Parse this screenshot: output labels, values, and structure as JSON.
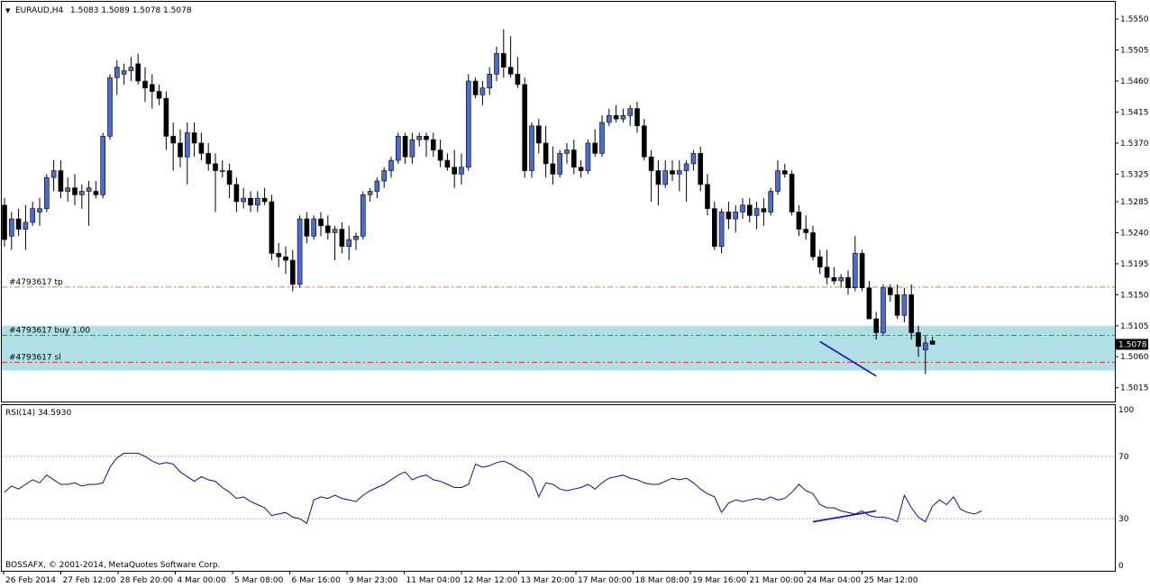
{
  "header": {
    "symbol": "EURAUD,H4",
    "ohlc": "1.5083 1.5089 1.5078 1.5078"
  },
  "footer": {
    "copyright": "BOSSAFX, © 2001-2014, MetaQuotes Software Corp."
  },
  "chart_data": [
    {
      "type": "candlestick",
      "title": "EURAUD,H4",
      "ylim": [
        1.4995,
        1.5575
      ],
      "y_ticks": [
        "1.5550",
        "1.5505",
        "1.5460",
        "1.5415",
        "1.5370",
        "1.5325",
        "1.5285",
        "1.5240",
        "1.5195",
        "1.5150",
        "1.5105",
        "1.5060",
        "1.5015"
      ],
      "x_labels": [
        "26 Feb 2014",
        "27 Feb 12:00",
        "28 Feb 20:00",
        "4 Mar 00:00",
        "5 Mar 08:00",
        "6 Mar 16:00",
        "9 Mar 23:00",
        "11 Mar 04:00",
        "12 Mar 12:00",
        "13 Mar 20:00",
        "17 Mar 00:00",
        "18 Mar 08:00",
        "19 Mar 16:00",
        "21 Mar 00:00",
        "24 Mar 04:00",
        "25 Mar 12:00"
      ],
      "current_price": "1.5078",
      "current_price_value": 1.5078,
      "order_lines": [
        {
          "label": "#4793617 tp",
          "price": 1.5161,
          "color": "#e07a30"
        },
        {
          "label": "#4793617 buy 1.00",
          "price": 1.5091,
          "color": "#2e8b57"
        },
        {
          "label": "#4793617 sl",
          "price": 1.5052,
          "color": "#e03030"
        }
      ],
      "zone": {
        "from": 1.504,
        "to": 1.5105,
        "color": "#b0dfe6"
      },
      "trendline": {
        "from": [
          116,
          1.5082
        ],
        "to": [
          124,
          1.5032
        ],
        "color": "#1010c8"
      },
      "up_color": "#4a6bd6",
      "down_color": "#000000",
      "candles": [
        [
          1.528,
          1.529,
          1.522,
          1.523
        ],
        [
          1.5235,
          1.527,
          1.5215,
          1.526
        ],
        [
          1.526,
          1.5275,
          1.5235,
          1.5245
        ],
        [
          1.5245,
          1.528,
          1.5215,
          1.5255
        ],
        [
          1.5255,
          1.5285,
          1.525,
          1.5275
        ],
        [
          1.527,
          1.529,
          1.525,
          1.5275
        ],
        [
          1.5275,
          1.5325,
          1.527,
          1.532
        ],
        [
          1.532,
          1.5345,
          1.53,
          1.533
        ],
        [
          1.533,
          1.5345,
          1.529,
          1.53
        ],
        [
          1.53,
          1.532,
          1.5285,
          1.5305
        ],
        [
          1.5305,
          1.5325,
          1.528,
          1.5295
        ],
        [
          1.5295,
          1.531,
          1.5275,
          1.53
        ],
        [
          1.53,
          1.5315,
          1.525,
          1.5305
        ],
        [
          1.53,
          1.5315,
          1.529,
          1.5295
        ],
        [
          1.5295,
          1.5385,
          1.529,
          1.538
        ],
        [
          1.538,
          1.547,
          1.5375,
          1.5465
        ],
        [
          1.5465,
          1.549,
          1.544,
          1.548
        ],
        [
          1.547,
          1.5485,
          1.5455,
          1.5475
        ],
        [
          1.5475,
          1.5495,
          1.546,
          1.548
        ],
        [
          1.5485,
          1.55,
          1.5455,
          1.546
        ],
        [
          1.546,
          1.548,
          1.543,
          1.545
        ],
        [
          1.5455,
          1.547,
          1.542,
          1.5445
        ],
        [
          1.5445,
          1.5455,
          1.5425,
          1.5435
        ],
        [
          1.5435,
          1.5445,
          1.536,
          1.538
        ],
        [
          1.538,
          1.54,
          1.533,
          1.537
        ],
        [
          1.537,
          1.539,
          1.5335,
          1.535
        ],
        [
          1.535,
          1.54,
          1.531,
          1.5385
        ],
        [
          1.5385,
          1.54,
          1.535,
          1.537
        ],
        [
          1.537,
          1.5385,
          1.5345,
          1.5355
        ],
        [
          1.5355,
          1.537,
          1.533,
          1.534
        ],
        [
          1.534,
          1.5355,
          1.527,
          1.533
        ],
        [
          1.533,
          1.5345,
          1.532,
          1.533
        ],
        [
          1.533,
          1.534,
          1.529,
          1.531
        ],
        [
          1.531,
          1.532,
          1.527,
          1.5285
        ],
        [
          1.5285,
          1.5305,
          1.5275,
          1.529
        ],
        [
          1.529,
          1.53,
          1.527,
          1.528
        ],
        [
          1.528,
          1.53,
          1.527,
          1.529
        ],
        [
          1.529,
          1.5305,
          1.528,
          1.5285
        ],
        [
          1.5285,
          1.5295,
          1.52,
          1.521
        ],
        [
          1.521,
          1.5225,
          1.519,
          1.5205
        ],
        [
          1.5205,
          1.522,
          1.518,
          1.52
        ],
        [
          1.52,
          1.5215,
          1.5155,
          1.5165
        ],
        [
          1.5165,
          1.5265,
          1.516,
          1.526
        ],
        [
          1.526,
          1.527,
          1.5225,
          1.5235
        ],
        [
          1.5235,
          1.5265,
          1.523,
          1.526
        ],
        [
          1.526,
          1.527,
          1.5235,
          1.525
        ],
        [
          1.525,
          1.5265,
          1.523,
          1.524
        ],
        [
          1.524,
          1.525,
          1.52,
          1.5245
        ],
        [
          1.5245,
          1.5255,
          1.521,
          1.522
        ],
        [
          1.522,
          1.525,
          1.52,
          1.523
        ],
        [
          1.523,
          1.524,
          1.5215,
          1.5235
        ],
        [
          1.5235,
          1.53,
          1.523,
          1.5295
        ],
        [
          1.5295,
          1.5305,
          1.5285,
          1.53
        ],
        [
          1.53,
          1.532,
          1.529,
          1.5315
        ],
        [
          1.5315,
          1.5335,
          1.5305,
          1.533
        ],
        [
          1.533,
          1.535,
          1.532,
          1.5345
        ],
        [
          1.5345,
          1.5385,
          1.534,
          1.538
        ],
        [
          1.538,
          1.5385,
          1.534,
          1.535
        ],
        [
          1.535,
          1.5385,
          1.534,
          1.5375
        ],
        [
          1.5375,
          1.5385,
          1.5365,
          1.538
        ],
        [
          1.538,
          1.5385,
          1.535,
          1.5375
        ],
        [
          1.5375,
          1.5385,
          1.535,
          1.536
        ],
        [
          1.536,
          1.5375,
          1.5335,
          1.5345
        ],
        [
          1.5345,
          1.5355,
          1.533,
          1.5335
        ],
        [
          1.5335,
          1.536,
          1.5305,
          1.5325
        ],
        [
          1.5325,
          1.5355,
          1.531,
          1.5335
        ],
        [
          1.5335,
          1.547,
          1.533,
          1.546
        ],
        [
          1.546,
          1.5465,
          1.5435,
          1.544
        ],
        [
          1.544,
          1.546,
          1.5425,
          1.545
        ],
        [
          1.545,
          1.548,
          1.544,
          1.547
        ],
        [
          1.547,
          1.551,
          1.546,
          1.55
        ],
        [
          1.55,
          1.5535,
          1.5465,
          1.548
        ],
        [
          1.548,
          1.5525,
          1.5465,
          1.547
        ],
        [
          1.547,
          1.5495,
          1.545,
          1.5455
        ],
        [
          1.5455,
          1.5465,
          1.532,
          1.533
        ],
        [
          1.533,
          1.54,
          1.532,
          1.5395
        ],
        [
          1.5395,
          1.5405,
          1.5355,
          1.537
        ],
        [
          1.537,
          1.5395,
          1.532,
          1.534
        ],
        [
          1.534,
          1.5365,
          1.531,
          1.5325
        ],
        [
          1.5325,
          1.536,
          1.532,
          1.5355
        ],
        [
          1.5355,
          1.537,
          1.534,
          1.536
        ],
        [
          1.536,
          1.5375,
          1.5325,
          1.5335
        ],
        [
          1.5335,
          1.5345,
          1.532,
          1.533
        ],
        [
          1.533,
          1.5375,
          1.5325,
          1.537
        ],
        [
          1.537,
          1.539,
          1.535,
          1.5355
        ],
        [
          1.5355,
          1.541,
          1.535,
          1.54
        ],
        [
          1.54,
          1.542,
          1.5395,
          1.541
        ],
        [
          1.541,
          1.5425,
          1.54,
          1.5405
        ],
        [
          1.5405,
          1.542,
          1.54,
          1.541
        ],
        [
          1.541,
          1.5425,
          1.5395,
          1.542
        ],
        [
          1.542,
          1.543,
          1.5385,
          1.5395
        ],
        [
          1.5395,
          1.5405,
          1.5345,
          1.535
        ],
        [
          1.535,
          1.536,
          1.5285,
          1.533
        ],
        [
          1.533,
          1.5345,
          1.528,
          1.531
        ],
        [
          1.531,
          1.5345,
          1.5305,
          1.533
        ],
        [
          1.533,
          1.5345,
          1.5315,
          1.5325
        ],
        [
          1.5325,
          1.5345,
          1.53,
          1.533
        ],
        [
          1.533,
          1.5345,
          1.5285,
          1.534
        ],
        [
          1.534,
          1.536,
          1.533,
          1.5355
        ],
        [
          1.5355,
          1.5365,
          1.53,
          1.531
        ],
        [
          1.531,
          1.5325,
          1.5265,
          1.5275
        ],
        [
          1.5275,
          1.5285,
          1.5215,
          1.522
        ],
        [
          1.522,
          1.5275,
          1.521,
          1.527
        ],
        [
          1.527,
          1.5285,
          1.5245,
          1.526
        ],
        [
          1.526,
          1.528,
          1.524,
          1.527
        ],
        [
          1.527,
          1.529,
          1.526,
          1.528
        ],
        [
          1.528,
          1.529,
          1.5255,
          1.5265
        ],
        [
          1.5265,
          1.5285,
          1.5245,
          1.5275
        ],
        [
          1.5275,
          1.529,
          1.525,
          1.527
        ],
        [
          1.527,
          1.5305,
          1.5265,
          1.53
        ],
        [
          1.53,
          1.5345,
          1.5295,
          1.533
        ],
        [
          1.533,
          1.534,
          1.532,
          1.5325
        ],
        [
          1.5325,
          1.533,
          1.5265,
          1.527
        ],
        [
          1.527,
          1.528,
          1.5235,
          1.5245
        ],
        [
          1.5245,
          1.5265,
          1.523,
          1.524
        ],
        [
          1.524,
          1.525,
          1.52,
          1.5205
        ],
        [
          1.5205,
          1.5215,
          1.518,
          1.519
        ],
        [
          1.519,
          1.5215,
          1.5165,
          1.5175
        ],
        [
          1.5175,
          1.519,
          1.5165,
          1.517
        ],
        [
          1.517,
          1.518,
          1.516,
          1.5175
        ],
        [
          1.5175,
          1.5185,
          1.515,
          1.516
        ],
        [
          1.516,
          1.5235,
          1.5155,
          1.521
        ],
        [
          1.521,
          1.5215,
          1.5155,
          1.516
        ],
        [
          1.516,
          1.517,
          1.5115,
          1.5115
        ],
        [
          1.5115,
          1.5125,
          1.5085,
          1.5095
        ],
        [
          1.5095,
          1.5165,
          1.509,
          1.516
        ],
        [
          1.516,
          1.5165,
          1.514,
          1.515
        ],
        [
          1.515,
          1.5165,
          1.5115,
          1.512
        ],
        [
          1.512,
          1.516,
          1.511,
          1.515
        ],
        [
          1.515,
          1.5165,
          1.5085,
          1.5095
        ],
        [
          1.5095,
          1.5105,
          1.506,
          1.5075
        ],
        [
          1.507,
          1.509,
          1.5035,
          1.508
        ],
        [
          1.5083,
          1.5089,
          1.5078,
          1.5078
        ]
      ]
    },
    {
      "type": "line",
      "title": "RSI(14) 34.5930",
      "ylim": [
        0,
        100
      ],
      "y_ticks": [
        "100",
        "70",
        "30",
        "0"
      ],
      "levels": [
        70,
        30
      ],
      "color": "#1010a0",
      "values": [
        47,
        51,
        49,
        52,
        55,
        53,
        58,
        55,
        52,
        52,
        53,
        51,
        52,
        52,
        53,
        63,
        69,
        72,
        72,
        72,
        70,
        67,
        65,
        66,
        65,
        60,
        57,
        54,
        57,
        55,
        54,
        50,
        47,
        43,
        44,
        41,
        39,
        37,
        32,
        33,
        34,
        31,
        30,
        27,
        42,
        44,
        43,
        45,
        43,
        42,
        41,
        45,
        48,
        50,
        52,
        55,
        58,
        60,
        55,
        57,
        58,
        55,
        54,
        52,
        50,
        50,
        52,
        65,
        63,
        64,
        66,
        67,
        65,
        62,
        60,
        56,
        44,
        53,
        52,
        49,
        48,
        49,
        50,
        52,
        49,
        53,
        56,
        57,
        58,
        56,
        55,
        53,
        52,
        52,
        54,
        56,
        55,
        56,
        53,
        49,
        46,
        44,
        34,
        40,
        42,
        41,
        42,
        43,
        42,
        44,
        42,
        43,
        47,
        52,
        48,
        46,
        39,
        37,
        37,
        35,
        34,
        33,
        35,
        32,
        31,
        31,
        30,
        28,
        45,
        37,
        31,
        28,
        38,
        42,
        39,
        44,
        36,
        34,
        33,
        35
      ]
    }
  ]
}
